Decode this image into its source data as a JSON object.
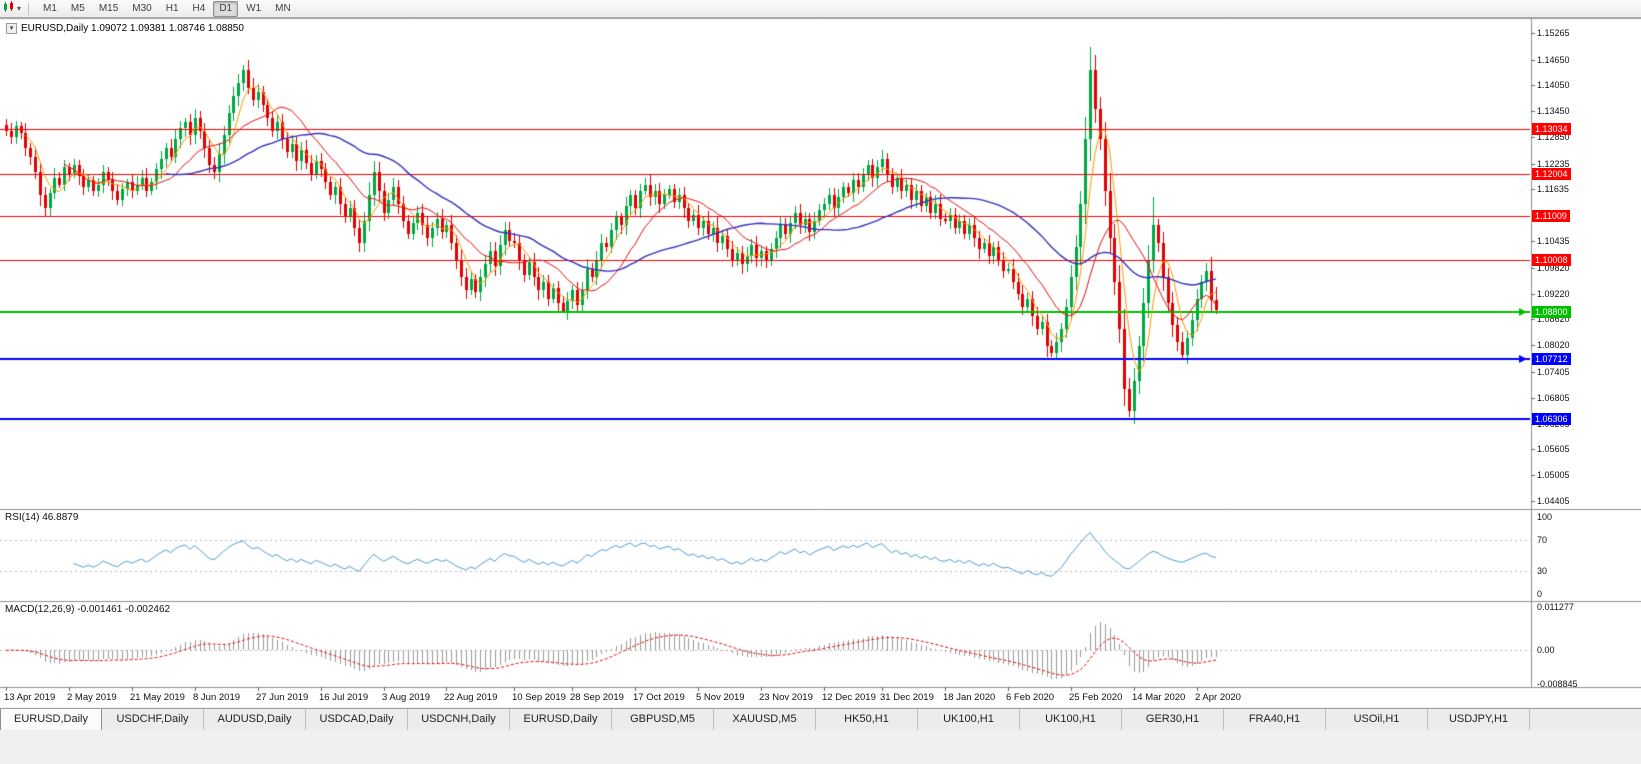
{
  "toolbar": {
    "timeframes": [
      {
        "label": "M1",
        "active": false
      },
      {
        "label": "M5",
        "active": false
      },
      {
        "label": "M15",
        "active": false
      },
      {
        "label": "M30",
        "active": false
      },
      {
        "label": "H1",
        "active": false
      },
      {
        "label": "H4",
        "active": false
      },
      {
        "label": "D1",
        "active": true
      },
      {
        "label": "W1",
        "active": false
      },
      {
        "label": "MN",
        "active": false
      }
    ]
  },
  "chart": {
    "title": "EURUSD,Daily  1.09072 1.09381 1.08746 1.08850",
    "symbol": "EURUSD",
    "period": "Daily"
  },
  "indicators": {
    "rsi_label": "RSI(14) 46.8879",
    "macd_label": "MACD(12,26,9) -0.001461 -0.002462"
  },
  "colors": {
    "up": "#00A843",
    "down": "#E00000",
    "ma_fast": "#FF9900",
    "ma_mid": "#E81010",
    "ma_slow": "#3333BB",
    "rsi": "#4FA0D0",
    "macd_hist": "#9A9A9A",
    "macd_signal": "#E01010",
    "grid_dash": "#BBBBBB",
    "separator": "#8F8F8F"
  },
  "chart_data": {
    "type": "candlestick",
    "symbol": "EURUSD",
    "timeframe": "Daily",
    "last_ohlc": {
      "open": 1.09072,
      "high": 1.09381,
      "low": 1.08746,
      "close": 1.0885
    },
    "closes": [
      1.13,
      1.1285,
      1.131,
      1.1295,
      1.126,
      1.124,
      1.1205,
      1.115,
      1.112,
      1.1155,
      1.119,
      1.1175,
      1.1215,
      1.12,
      1.122,
      1.1195,
      1.117,
      1.1185,
      1.116,
      1.1175,
      1.1205,
      1.1185,
      1.116,
      1.114,
      1.1165,
      1.118,
      1.116,
      1.1175,
      1.119,
      1.116,
      1.118,
      1.121,
      1.1235,
      1.126,
      1.124,
      1.128,
      1.1305,
      1.132,
      1.129,
      1.133,
      1.13,
      1.126,
      1.122,
      1.1205,
      1.1245,
      1.129,
      1.134,
      1.138,
      1.141,
      1.144,
      1.14,
      1.137,
      1.139,
      1.136,
      1.133,
      1.13,
      1.132,
      1.128,
      1.125,
      1.127,
      1.123,
      1.1255,
      1.1225,
      1.12,
      1.123,
      1.121,
      1.118,
      1.115,
      1.117,
      1.113,
      1.11,
      1.112,
      1.1075,
      1.104,
      1.109,
      1.115,
      1.1205,
      1.116,
      1.111,
      1.114,
      1.117,
      1.113,
      1.109,
      1.106,
      1.1085,
      1.111,
      1.108,
      1.105,
      1.1075,
      1.1095,
      1.1065,
      1.108,
      1.104,
      1.1,
      1.096,
      1.093,
      1.0955,
      1.0925,
      1.096,
      1.099,
      1.102,
      1.0985,
      1.1035,
      1.107,
      1.1045,
      1.104,
      1.1,
      1.0965,
      1.0995,
      1.096,
      1.093,
      1.095,
      1.091,
      1.0935,
      1.09,
      1.088,
      1.0905,
      1.093,
      1.0895,
      1.093,
      1.098,
      1.096,
      1.1,
      1.104,
      1.103,
      1.107,
      1.11,
      1.108,
      1.1125,
      1.115,
      1.112,
      1.116,
      1.1175,
      1.1145,
      1.116,
      1.113,
      1.115,
      1.1165,
      1.1135,
      1.115,
      1.112,
      1.109,
      1.1105,
      1.1075,
      1.109,
      1.106,
      1.1075,
      1.104,
      1.1055,
      1.1025,
      1.1,
      1.1015,
      1.099,
      1.101,
      1.1035,
      1.1005,
      1.102,
      1.1,
      1.1025,
      1.105,
      1.108,
      1.106,
      1.1085,
      1.111,
      1.108,
      1.1095,
      1.1065,
      1.109,
      1.1115,
      1.113,
      1.115,
      1.112,
      1.1145,
      1.117,
      1.1155,
      1.1185,
      1.117,
      1.12,
      1.122,
      1.119,
      1.1215,
      1.1235,
      1.12,
      1.117,
      1.119,
      1.116,
      1.1175,
      1.114,
      1.116,
      1.1125,
      1.1145,
      1.111,
      1.113,
      1.1095,
      1.109,
      1.1105,
      1.1075,
      1.109,
      1.106,
      1.108,
      1.105,
      1.1025,
      1.104,
      1.101,
      1.103,
      1.1,
      1.0975,
      1.098,
      1.095,
      1.092,
      1.089,
      1.091,
      1.087,
      1.084,
      1.0855,
      1.08,
      1.0785,
      1.081,
      1.084,
      1.089,
      1.096,
      1.103,
      1.113,
      1.128,
      1.144,
      1.135,
      1.128,
      1.116,
      1.105,
      1.095,
      1.084,
      1.07,
      1.065,
      1.072,
      1.08,
      1.09,
      1.1,
      1.108,
      1.104,
      1.096,
      1.09,
      1.085,
      1.081,
      1.078,
      1.082,
      1.086,
      1.091,
      1.095,
      1.0975,
      1.0907,
      1.0885
    ],
    "overrides": {
      "115": {
        "low": 1.0879
      },
      "224": {
        "high": 1.1495
      },
      "232": {
        "low": 1.0636
      },
      "237": {
        "high": 1.1147
      },
      "243": {
        "low": 1.0771
      },
      "250": {
        "open": 1.09072,
        "high": 1.09381,
        "low": 1.08746,
        "close": 1.0885
      }
    },
    "price_axis": {
      "range_top": 1.15613,
      "range_bottom": 1.04223,
      "ticks": [
        {
          "label": "1.15265",
          "price": 1.15265
        },
        {
          "label": "1.14650",
          "price": 1.1465
        },
        {
          "label": "1.14050",
          "price": 1.1405
        },
        {
          "label": "1.13450",
          "price": 1.1345
        },
        {
          "label": "1.12850",
          "price": 1.1285
        },
        {
          "label": "1.12235",
          "price": 1.12235
        },
        {
          "label": "1.11635",
          "price": 1.11635
        },
        {
          "label": "1.10435",
          "price": 1.10435
        },
        {
          "label": "1.09820",
          "price": 1.0982
        },
        {
          "label": "1.09220",
          "price": 1.0922
        },
        {
          "label": "1.08620",
          "price": 1.0862
        },
        {
          "label": "1.08020",
          "price": 1.0802
        },
        {
          "label": "1.07405",
          "price": 1.07405
        },
        {
          "label": "1.06805",
          "price": 1.06805
        },
        {
          "label": "1.06205",
          "price": 1.06205
        },
        {
          "label": "1.05605",
          "price": 1.05605
        },
        {
          "label": "1.05005",
          "price": 1.05005
        },
        {
          "label": "1.04405",
          "price": 1.04405
        }
      ]
    },
    "levels": [
      {
        "label": "1.13034",
        "price": 1.13034,
        "color": "#FF0000",
        "width": 1,
        "marker": false
      },
      {
        "label": "1.12004",
        "price": 1.12004,
        "color": "#FF0000",
        "width": 1,
        "marker": false
      },
      {
        "label": "1.11009",
        "price": 1.11009,
        "color": "#FF0000",
        "width": 1,
        "marker": false
      },
      {
        "label": "1.10008",
        "price": 1.10008,
        "color": "#FF0000",
        "width": 1,
        "marker": false
      },
      {
        "label": "1.08800",
        "price": 1.088,
        "color": "#00BF00",
        "width": 2,
        "marker": true
      },
      {
        "label": "1.07712",
        "price": 1.07712,
        "color": "#0000FF",
        "width": 2,
        "marker": true
      },
      {
        "label": "1.06306",
        "price": 1.06306,
        "color": "#0000FF",
        "width": 2,
        "marker": false
      }
    ],
    "moving_averages": [
      {
        "period": 5,
        "color_key": "ma_fast"
      },
      {
        "period": 13,
        "color_key": "ma_mid"
      },
      {
        "period": 34,
        "color_key": "ma_slow"
      }
    ],
    "x_labels": [
      {
        "i": 0,
        "text": "13 Apr 2019"
      },
      {
        "i": 13,
        "text": "2 May 2019"
      },
      {
        "i": 26,
        "text": "21 May 2019"
      },
      {
        "i": 39,
        "text": "8 Jun 2019"
      },
      {
        "i": 52,
        "text": "27 Jun 2019"
      },
      {
        "i": 65,
        "text": "16 Jul 2019"
      },
      {
        "i": 78,
        "text": "3 Aug 2019"
      },
      {
        "i": 91,
        "text": "22 Aug 2019"
      },
      {
        "i": 105,
        "text": "10 Sep 2019"
      },
      {
        "i": 117,
        "text": "28 Sep 2019"
      },
      {
        "i": 130,
        "text": "17 Oct 2019"
      },
      {
        "i": 143,
        "text": "5 Nov 2019"
      },
      {
        "i": 156,
        "text": "23 Nov 2019"
      },
      {
        "i": 169,
        "text": "12 Dec 2019"
      },
      {
        "i": 181,
        "text": "31 Dec 2019"
      },
      {
        "i": 194,
        "text": "18 Jan 2020"
      },
      {
        "i": 207,
        "text": "6 Feb 2020"
      },
      {
        "i": 220,
        "text": "25 Feb 2020"
      },
      {
        "i": 233,
        "text": "14 Mar 2020"
      },
      {
        "i": 246,
        "text": "2 Apr 2020"
      }
    ],
    "rsi": {
      "period": 14,
      "value": 46.8879,
      "axis": [
        {
          "label": "100",
          "v": 100
        },
        {
          "label": "70",
          "v": 70
        },
        {
          "label": "30",
          "v": 30
        },
        {
          "label": "0",
          "v": 0
        }
      ],
      "dashed_levels": [
        70,
        30
      ]
    },
    "macd": {
      "fast": 12,
      "slow": 26,
      "signal": 9,
      "values": [
        -0.001461,
        -0.002462
      ],
      "range_top": 0.011277,
      "range_bottom": -0.008845,
      "axis": [
        {
          "label": "0.011277",
          "v": 0.011277
        },
        {
          "label": "0.00",
          "v": 0
        },
        {
          "label": "-0.008845",
          "v": -0.008845
        }
      ]
    }
  },
  "tabs": [
    {
      "label": "EURUSD,Daily",
      "active": true
    },
    {
      "label": "USDCHF,Daily",
      "active": false
    },
    {
      "label": "AUDUSD,Daily",
      "active": false
    },
    {
      "label": "USDCAD,Daily",
      "active": false
    },
    {
      "label": "USDCNH,Daily",
      "active": false
    },
    {
      "label": "EURUSD,Daily",
      "active": false
    },
    {
      "label": "GBPUSD,M5",
      "active": false
    },
    {
      "label": "XAUUSD,M5",
      "active": false
    },
    {
      "label": "HK50,H1",
      "active": false
    },
    {
      "label": "UK100,H1",
      "active": false
    },
    {
      "label": "UK100,H1",
      "active": false
    },
    {
      "label": "GER30,H1",
      "active": false
    },
    {
      "label": "FRA40,H1",
      "active": false
    },
    {
      "label": "USOil,H1",
      "active": false
    },
    {
      "label": "USDJPY,H1",
      "active": false
    }
  ]
}
